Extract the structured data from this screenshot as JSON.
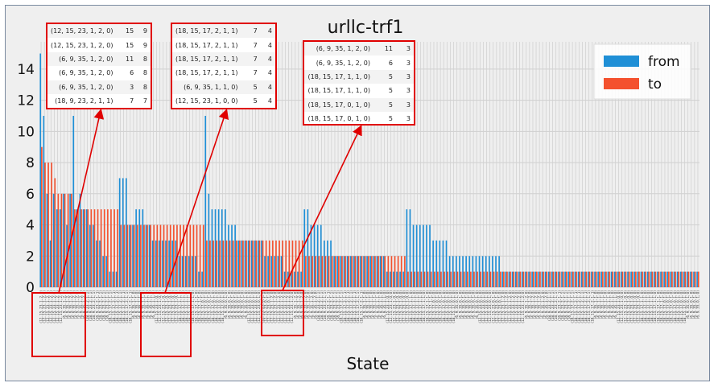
{
  "chart_data": {
    "type": "bar",
    "title": "urllc-trf1",
    "xlabel": "State",
    "ylabel": "",
    "ylim": [
      0,
      15.75
    ],
    "yticks": [
      0,
      2,
      4,
      6,
      8,
      10,
      12,
      14
    ],
    "grid": true,
    "legend_position": "upper-right",
    "num_states": 200,
    "series": [
      {
        "name": "from",
        "color": "#1f8fd6",
        "values": [
          15,
          11,
          6,
          3,
          6,
          5,
          5,
          6,
          4,
          6,
          11,
          5,
          6,
          5,
          5,
          4,
          4,
          3,
          3,
          2,
          2,
          1,
          1,
          1,
          7,
          7,
          7,
          4,
          4,
          5,
          5,
          5,
          4,
          4,
          3,
          3,
          3,
          3,
          3,
          3,
          3,
          3,
          2,
          2,
          2,
          2,
          2,
          2,
          1,
          1,
          11,
          6,
          5,
          5,
          5,
          5,
          5,
          4,
          4,
          4,
          3,
          3,
          3,
          3,
          3,
          3,
          3,
          3,
          2,
          2,
          2,
          2,
          2,
          2,
          1,
          1,
          1,
          1,
          1,
          1,
          5,
          5,
          4,
          4,
          4,
          4,
          3,
          3,
          3,
          2,
          2,
          2,
          2,
          2,
          2,
          2,
          2,
          2,
          2,
          2,
          2,
          2,
          2,
          2,
          2,
          1,
          1,
          1,
          1,
          1,
          1,
          5,
          5,
          4,
          4,
          4,
          4,
          4,
          4,
          3,
          3,
          3,
          3,
          3,
          2,
          2,
          2,
          2,
          2,
          2,
          2,
          2,
          2,
          2,
          2,
          2,
          2,
          2,
          2,
          2,
          1,
          1,
          1,
          1,
          1,
          1,
          1,
          1,
          1,
          1,
          1,
          1,
          1,
          1,
          1,
          1,
          1,
          1,
          1,
          1,
          1,
          1,
          1,
          1,
          1,
          1,
          1,
          1,
          1,
          1,
          1,
          1,
          1,
          1,
          1,
          1,
          1,
          1,
          1,
          1,
          1,
          1,
          1,
          1,
          1,
          1,
          1,
          1,
          1,
          1,
          1,
          1,
          1,
          1,
          1,
          1,
          1,
          1,
          1,
          1
        ]
      },
      {
        "name": "to",
        "color": "#f4512e",
        "values": [
          9,
          8,
          8,
          8,
          7,
          6,
          6,
          6,
          6,
          6,
          5,
          5,
          5,
          5,
          5,
          5,
          5,
          5,
          5,
          5,
          5,
          5,
          5,
          5,
          4,
          4,
          4,
          4,
          4,
          4,
          4,
          4,
          4,
          4,
          4,
          4,
          4,
          4,
          4,
          4,
          4,
          4,
          4,
          4,
          4,
          4,
          4,
          4,
          4,
          4,
          3,
          3,
          3,
          3,
          3,
          3,
          3,
          3,
          3,
          3,
          3,
          3,
          3,
          3,
          3,
          3,
          3,
          3,
          3,
          3,
          3,
          3,
          3,
          3,
          3,
          3,
          3,
          3,
          3,
          3,
          2,
          2,
          2,
          2,
          2,
          2,
          2,
          2,
          2,
          2,
          2,
          2,
          2,
          2,
          2,
          2,
          2,
          2,
          2,
          2,
          2,
          2,
          2,
          2,
          2,
          2,
          2,
          2,
          2,
          2,
          2,
          1,
          1,
          1,
          1,
          1,
          1,
          1,
          1,
          1,
          1,
          1,
          1,
          1,
          1,
          1,
          1,
          1,
          1,
          1,
          1,
          1,
          1,
          1,
          1,
          1,
          1,
          1,
          1,
          1,
          1,
          1,
          1,
          1,
          1,
          1,
          1,
          1,
          1,
          1,
          1,
          1,
          1,
          1,
          1,
          1,
          1,
          1,
          1,
          1,
          1,
          1,
          1,
          1,
          1,
          1,
          1,
          1,
          1,
          1,
          1,
          1,
          1,
          1,
          1,
          1,
          1,
          1,
          1,
          1,
          1,
          1,
          1,
          1,
          1,
          1,
          1,
          1,
          1,
          1,
          1,
          1,
          1,
          1,
          1,
          1,
          1,
          1,
          1,
          1
        ]
      }
    ],
    "zoom_boxes": [
      {
        "rows": [
          {
            "state": "(12, 15, 23, 1, 2, 0)",
            "from": "15",
            "to": "9"
          },
          {
            "state": "(12, 15, 23, 1, 2, 0)",
            "from": "15",
            "to": "9"
          },
          {
            "state": "(6, 9, 35, 1, 2, 0)",
            "from": "11",
            "to": "8"
          },
          {
            "state": "(6, 9, 35, 1, 2, 0)",
            "from": "6",
            "to": "8"
          },
          {
            "state": "(6, 9, 35, 1, 2, 0)",
            "from": "3",
            "to": "8"
          },
          {
            "state": "(18, 9, 23, 2, 1, 1)",
            "from": "7",
            "to": "7"
          }
        ]
      },
      {
        "rows": [
          {
            "state": "(18, 15, 17, 2, 1, 1)",
            "from": "7",
            "to": "4"
          },
          {
            "state": "(18, 15, 17, 2, 1, 1)",
            "from": "7",
            "to": "4"
          },
          {
            "state": "(18, 15, 17, 2, 1, 1)",
            "from": "7",
            "to": "4"
          },
          {
            "state": "(18, 15, 17, 2, 1, 1)",
            "from": "7",
            "to": "4"
          },
          {
            "state": "(6, 9, 35, 1, 1, 0)",
            "from": "5",
            "to": "4"
          },
          {
            "state": "(12, 15, 23, 1, 0, 0)",
            "from": "5",
            "to": "4"
          }
        ]
      },
      {
        "rows": [
          {
            "state": "(6, 9, 35, 1, 2, 0)",
            "from": "11",
            "to": "3"
          },
          {
            "state": "(6, 9, 35, 1, 2, 0)",
            "from": "6",
            "to": "3"
          },
          {
            "state": "(18, 15, 17, 1, 1, 0)",
            "from": "5",
            "to": "3"
          },
          {
            "state": "(18, 15, 17, 1, 1, 0)",
            "from": "5",
            "to": "3"
          },
          {
            "state": "(18, 15, 17, 0, 1, 0)",
            "from": "5",
            "to": "3"
          },
          {
            "state": "(18, 15, 17, 0, 1, 0)",
            "from": "5",
            "to": "3"
          }
        ]
      }
    ],
    "tick_label_patterns": [
      "(12, 15, 23, 1, 2, 0)",
      "(6, 9, 35, 1, 2, 0)",
      "(18, 9, 23, 2, 1, 1)",
      "(18, 15, 17, 2, 1, 1)",
      "(6, 9, 35, 1, 1, 0)",
      "(12, 15, 23, 1, 0, 0)",
      "(18, 15, 17, 1, 1, 0)",
      "(18, 15, 17, 0, 1, 0)",
      "(6, 9, 35, 0, 1, 0)",
      "(12, 15, 23, 0, 1, 0)"
    ]
  }
}
